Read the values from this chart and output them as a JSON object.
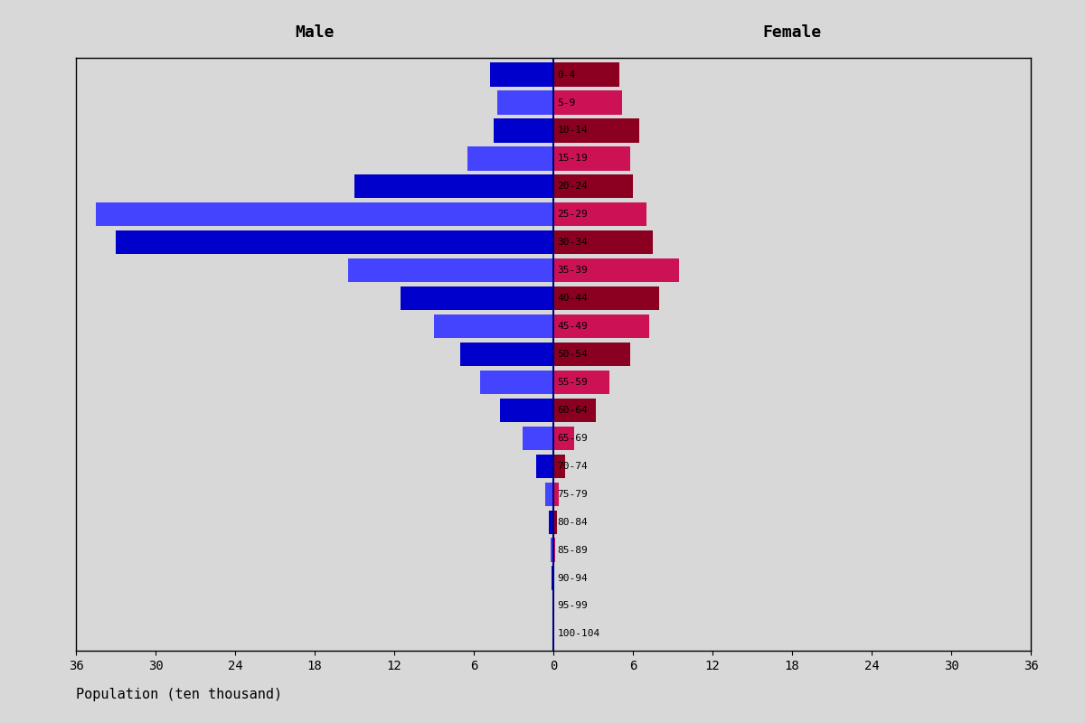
{
  "age_groups": [
    "100-104",
    "95-99",
    "90-94",
    "85-89",
    "80-84",
    "75-79",
    "70-74",
    "65-69",
    "60-64",
    "55-59",
    "50-54",
    "45-49",
    "40-44",
    "35-39",
    "30-34",
    "25-29",
    "20-24",
    "15-19",
    "10-14",
    "5-9",
    "0-4"
  ],
  "male": [
    0.05,
    0.08,
    0.12,
    0.2,
    0.35,
    0.6,
    1.3,
    2.3,
    4.0,
    5.5,
    7.0,
    9.0,
    11.5,
    15.5,
    33.0,
    34.5,
    15.0,
    6.5,
    4.5,
    4.2,
    4.8
  ],
  "female": [
    0.04,
    0.06,
    0.1,
    0.15,
    0.25,
    0.42,
    0.9,
    1.6,
    3.2,
    4.2,
    5.8,
    7.2,
    8.0,
    9.5,
    7.5,
    7.0,
    6.0,
    5.8,
    6.5,
    5.2,
    5.0
  ],
  "male_colors_even": "#0000CC",
  "male_colors_odd": "#4444FF",
  "female_colors_even": "#8B0020",
  "female_colors_odd": "#CC1155",
  "title_male": "Male",
  "title_female": "Female",
  "xlabel": "Population (ten thousand)",
  "xlim": 36,
  "background_color": "#D8D8D8",
  "bar_height": 0.85,
  "spine_color": "#000000"
}
